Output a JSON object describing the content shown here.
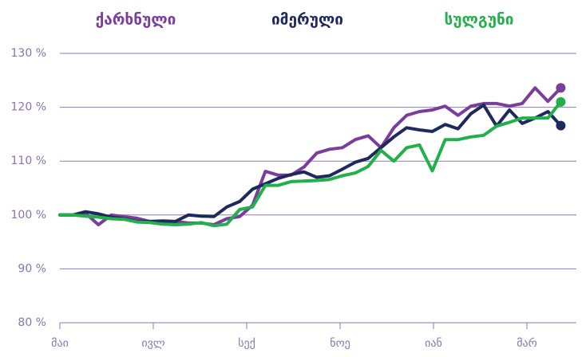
{
  "chart_data": {
    "type": "line",
    "x": [
      0,
      0.275,
      0.55,
      0.825,
      1.1,
      1.375,
      1.65,
      1.925,
      2.2,
      2.475,
      2.75,
      3.025,
      3.3,
      3.575,
      3.85,
      4.125,
      4.4,
      4.675,
      4.95,
      5.225,
      5.5,
      5.775,
      6.05,
      6.325,
      6.6,
      6.875,
      7.15,
      7.425,
      7.7,
      7.975,
      8.25,
      8.525,
      8.8,
      9.075,
      9.35,
      9.625,
      9.9,
      10.175,
      10.45,
      10.725
    ],
    "series": [
      {
        "name": "ქარხნული",
        "color": "#7b3d9c",
        "values": [
          100,
          100,
          100.3,
          98.2,
          100,
          99.7,
          99.4,
          98.8,
          98.7,
          98.8,
          98.5,
          98.5,
          98.2,
          99.3,
          99.7,
          101.8,
          108.1,
          107.4,
          107.4,
          108.9,
          111.5,
          112.2,
          112.5,
          114,
          114.7,
          112.5,
          116.2,
          118.5,
          119.2,
          119.5,
          120.2,
          118.5,
          120.2,
          120.7,
          120.7,
          120.2,
          120.7,
          123.6,
          121.1,
          123.6
        ]
      },
      {
        "name": "იმერული",
        "color": "#1e2a5e",
        "values": [
          100,
          100,
          100.6,
          100.2,
          99.6,
          99.3,
          98.8,
          98.8,
          98.9,
          98.8,
          100,
          99.8,
          99.7,
          101.5,
          102.5,
          104.8,
          105.8,
          106.8,
          107.5,
          108,
          107,
          107.3,
          108.5,
          109.8,
          110.5,
          112.5,
          114.5,
          116.2,
          115.8,
          115.5,
          116.8,
          116,
          118.8,
          120.4,
          116.5,
          119.5,
          117,
          118,
          119.2,
          116.6
        ]
      },
      {
        "name": "სულგუნი",
        "color": "#22b04b",
        "values": [
          100,
          100,
          99.8,
          99.6,
          99.3,
          99.2,
          98.7,
          98.6,
          98.3,
          98.2,
          98.3,
          98.6,
          98,
          98.3,
          101,
          101.5,
          105.5,
          105.5,
          106.2,
          106.3,
          106.4,
          106.6,
          107.3,
          107.8,
          109,
          112,
          110,
          112.5,
          113,
          108.2,
          114,
          114,
          114.5,
          114.8,
          116.5,
          117.2,
          118,
          118,
          118,
          121
        ]
      }
    ],
    "xlim": [
      0,
      11.06
    ],
    "xticks": [
      {
        "value": 0,
        "label": "მაი"
      },
      {
        "value": 2,
        "label": "ივლ"
      },
      {
        "value": 4,
        "label": "სექ"
      },
      {
        "value": 6,
        "label": "ნოე"
      },
      {
        "value": 8,
        "label": "იან"
      },
      {
        "value": 10,
        "label": "მარ"
      }
    ],
    "ylim": [
      80,
      130
    ],
    "yticks": [
      {
        "value": 80,
        "label": "80 %"
      },
      {
        "value": 90,
        "label": "90 %"
      },
      {
        "value": 100,
        "label": "100 %"
      },
      {
        "value": 110,
        "label": "110 %"
      },
      {
        "value": 120,
        "label": "120 %"
      },
      {
        "value": 130,
        "label": "130 %"
      }
    ],
    "grid": true
  }
}
